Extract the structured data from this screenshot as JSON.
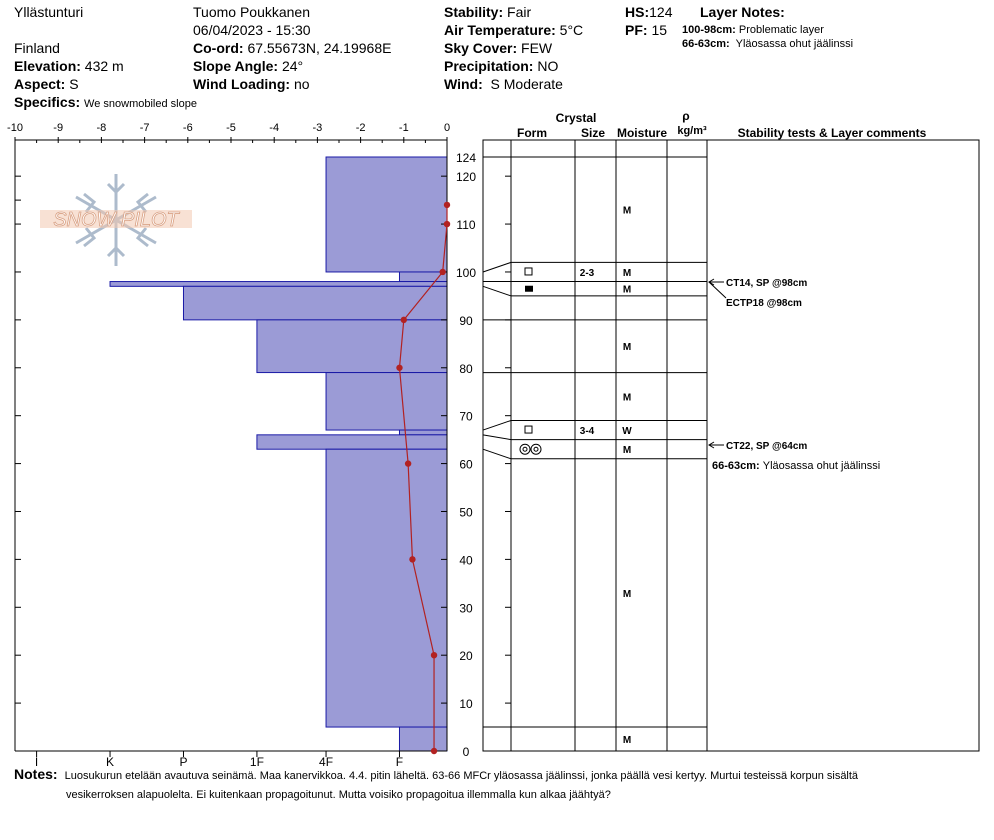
{
  "header": {
    "location": "Ylläs­tunturi",
    "country": "Finland",
    "elevation_label": "Elevation:",
    "elevation_value": "432 m",
    "aspect_label": "Aspect:",
    "aspect_value": "S",
    "specifics_label": "Specifics:",
    "specifics_value": "We snowmobiled slope",
    "observer": "Tuomo Poukkanen",
    "datetime": "06/04/2023 - 15:30",
    "coord_label": "Co-ord:",
    "coord_value": "67.55673N, 24.19968E",
    "slope_label": "Slope Angle:",
    "slope_value": "24°",
    "wind_loading_label": "Wind Loading:",
    "wind_loading_value": "no",
    "stability_label": "Stability:",
    "stability_value": "Fair",
    "air_temp_label": "Air Temperature:",
    "air_temp_value": "5°C",
    "sky_label": "Sky Cover:",
    "sky_value": "FEW",
    "precip_label": "Precipitation:",
    "precip_value": "NO",
    "wind_label": "Wind:",
    "wind_value": "S Moderate",
    "hs_label": "HS:",
    "hs_value": "124",
    "pf_label": "PF:",
    "pf_value": "15",
    "layer_notes_label": "Layer Notes:",
    "layer_notes": [
      {
        "depth": "100-98cm:",
        "text": "Problematic layer"
      },
      {
        "depth": "66-63cm:",
        "text": "Yläosassa ohut jäälinssi"
      }
    ]
  },
  "notes": {
    "label": "Notes:",
    "line1": "Luosukurun etelään avautuva seinämä. Maa kanervikkoa. 4.4. pitin läheltä. 63-66 MFCr yläosassa jäälinssi, jonka päällä vesi kertyy. Murtui testeissä korpun sisältä",
    "line2": "vesikerroksen alapuolelta. Ei kuitenkaan propagoitunut. Mutta voisiko propagoitua illemmalla kun alkaa jäähtyä?"
  },
  "logo_text": "SNOW PILOT",
  "table_headers": {
    "crystal": "Crystal",
    "form": "Form",
    "size": "Size",
    "moisture": "Moisture",
    "rho": "ρ",
    "density_unit": "kg/m³",
    "stability": "Stability tests & Layer comments"
  },
  "colors": {
    "hardness_fill": "#9b9bd6",
    "hardness_stroke": "#1a1aa6",
    "temp_line": "#b22222",
    "grid": "#000000"
  },
  "chart_data": {
    "type": "snow_profile",
    "hs": 124,
    "temp_axis": {
      "ticks": [
        "-10",
        "-9",
        "-8",
        "-7",
        "-6",
        "-5",
        "-4",
        "-3",
        "-2",
        "-1",
        "0"
      ],
      "range": [
        -10,
        0
      ]
    },
    "hardness_axis": {
      "ticks": [
        "I",
        "K",
        "P",
        "1F",
        "4F",
        "F"
      ]
    },
    "height_axis": {
      "range": [
        0,
        124
      ],
      "ticks": [
        "0",
        "10",
        "20",
        "30",
        "40",
        "50",
        "60",
        "70",
        "80",
        "90",
        "100",
        "110",
        "120"
      ],
      "top_label": "124"
    },
    "hardness_layers": [
      {
        "top": 124,
        "bottom": 100,
        "hardness": 2.8
      },
      {
        "top": 100,
        "bottom": 98,
        "hardness": 1.1
      },
      {
        "top": 98,
        "bottom": 97,
        "hardness": 7.8
      },
      {
        "top": 97,
        "bottom": 90,
        "hardness": 6.1
      },
      {
        "top": 90,
        "bottom": 79,
        "hardness": 4.4
      },
      {
        "top": 79,
        "bottom": 67,
        "hardness": 2.8
      },
      {
        "top": 67,
        "bottom": 66,
        "hardness": 1.1
      },
      {
        "top": 66,
        "bottom": 63,
        "hardness": 4.4
      },
      {
        "top": 63,
        "bottom": 5,
        "hardness": 2.8
      },
      {
        "top": 5,
        "bottom": 0,
        "hardness": 1.1
      }
    ],
    "temperature": [
      {
        "h": 114,
        "t": 0
      },
      {
        "h": 110,
        "t": 0
      },
      {
        "h": 100,
        "t": -0.1
      },
      {
        "h": 90,
        "t": -1
      },
      {
        "h": 80,
        "t": -1.1
      },
      {
        "h": 60,
        "t": -0.9
      },
      {
        "h": 40,
        "t": -0.8
      },
      {
        "h": 20,
        "t": -0.3
      },
      {
        "h": 0,
        "t": -0.3
      }
    ],
    "layer_boundaries": [
      124,
      102,
      98,
      95,
      90,
      79,
      69,
      65,
      61,
      5,
      0
    ],
    "layers": [
      {
        "top": 124,
        "bottom": 102,
        "moisture": "M"
      },
      {
        "top": 102,
        "bottom": 98,
        "form": "open-square",
        "size": "2-3",
        "moisture": "M"
      },
      {
        "top": 98,
        "bottom": 95,
        "form": "filled-square",
        "moisture": "M"
      },
      {
        "top": 95,
        "bottom": 90,
        "moisture": ""
      },
      {
        "top": 90,
        "bottom": 79,
        "moisture": "M"
      },
      {
        "top": 79,
        "bottom": 69,
        "moisture": "M"
      },
      {
        "top": 69,
        "bottom": 65,
        "form": "open-square",
        "size": "3-4",
        "moisture": "W"
      },
      {
        "top": 65,
        "bottom": 61,
        "form": "double-circle",
        "moisture": "M"
      },
      {
        "top": 61,
        "bottom": 5,
        "moisture": "M"
      },
      {
        "top": 5,
        "bottom": 0,
        "moisture": "M"
      }
    ],
    "tests": [
      {
        "label": "CT14, SP @98cm",
        "arrow": true
      },
      {
        "label": "ECTP18 @98cm",
        "arrow": false
      },
      {
        "label": "CT22, SP @64cm",
        "arrow": true
      }
    ],
    "layer_comments": [
      {
        "depth": "66-63cm:",
        "text": "Yläosassa ohut jäälinssi"
      }
    ]
  }
}
